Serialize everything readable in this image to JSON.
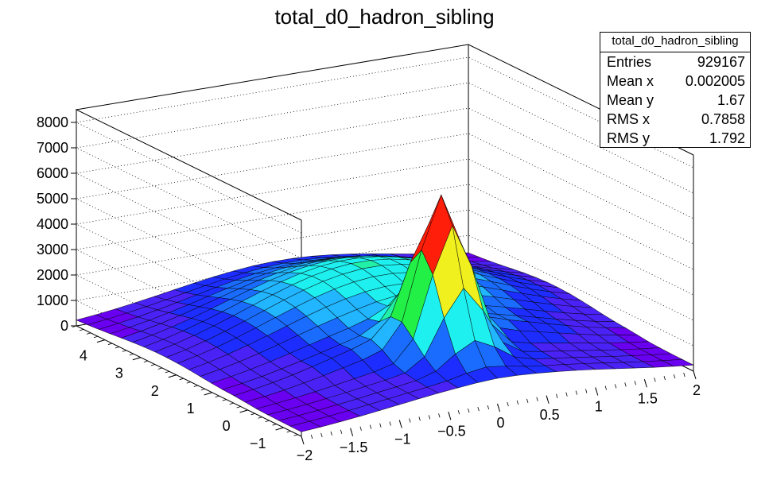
{
  "chart_data": {
    "type": "surface",
    "title": "total_d0_hadron_sibling",
    "x_axis": {
      "range": [
        -2,
        2
      ],
      "ticks": [
        -2,
        -1.5,
        -1,
        -0.5,
        0,
        0.5,
        1,
        1.5,
        2
      ],
      "tick_labels": [
        "−2",
        "−1.5",
        "−1",
        "−0.5",
        "0",
        "0.5",
        "1",
        "1.5",
        "2"
      ]
    },
    "y_axis": {
      "range": [
        -1.5,
        4.8
      ],
      "ticks": [
        -1,
        0,
        1,
        2,
        3,
        4
      ],
      "tick_labels": [
        "−1",
        "0",
        "1",
        "2",
        "3",
        "4"
      ]
    },
    "z_axis": {
      "range": [
        0,
        8500
      ],
      "ticks": [
        0,
        1000,
        2000,
        3000,
        4000,
        5000,
        6000,
        7000,
        8000
      ],
      "tick_labels": [
        "0",
        "1000",
        "2000",
        "3000",
        "4000",
        "5000",
        "6000",
        "7000",
        "8000"
      ]
    },
    "grid": true,
    "bins": {
      "nx": 20,
      "ny": 20
    },
    "peak": {
      "x": 0,
      "y": 0,
      "height": 5600
    },
    "stats_box": {
      "title": "total_d0_hadron_sibling",
      "rows": [
        {
          "label": "Entries",
          "value": "929167"
        },
        {
          "label": "Mean x",
          "value": "0.002005"
        },
        {
          "label": "Mean y",
          "value": "1.67"
        },
        {
          "label": "RMS x",
          "value": "0.7858"
        },
        {
          "label": "RMS y",
          "value": "1.792"
        }
      ]
    },
    "palette": [
      "#6a00f0",
      "#4a22f6",
      "#1e2dff",
      "#1a6cff",
      "#21b6ff",
      "#1ef0f0",
      "#22f0a6",
      "#22f046",
      "#9bf01e",
      "#f0f01e",
      "#ffb400",
      "#ff6a00",
      "#ff1e0a"
    ]
  }
}
